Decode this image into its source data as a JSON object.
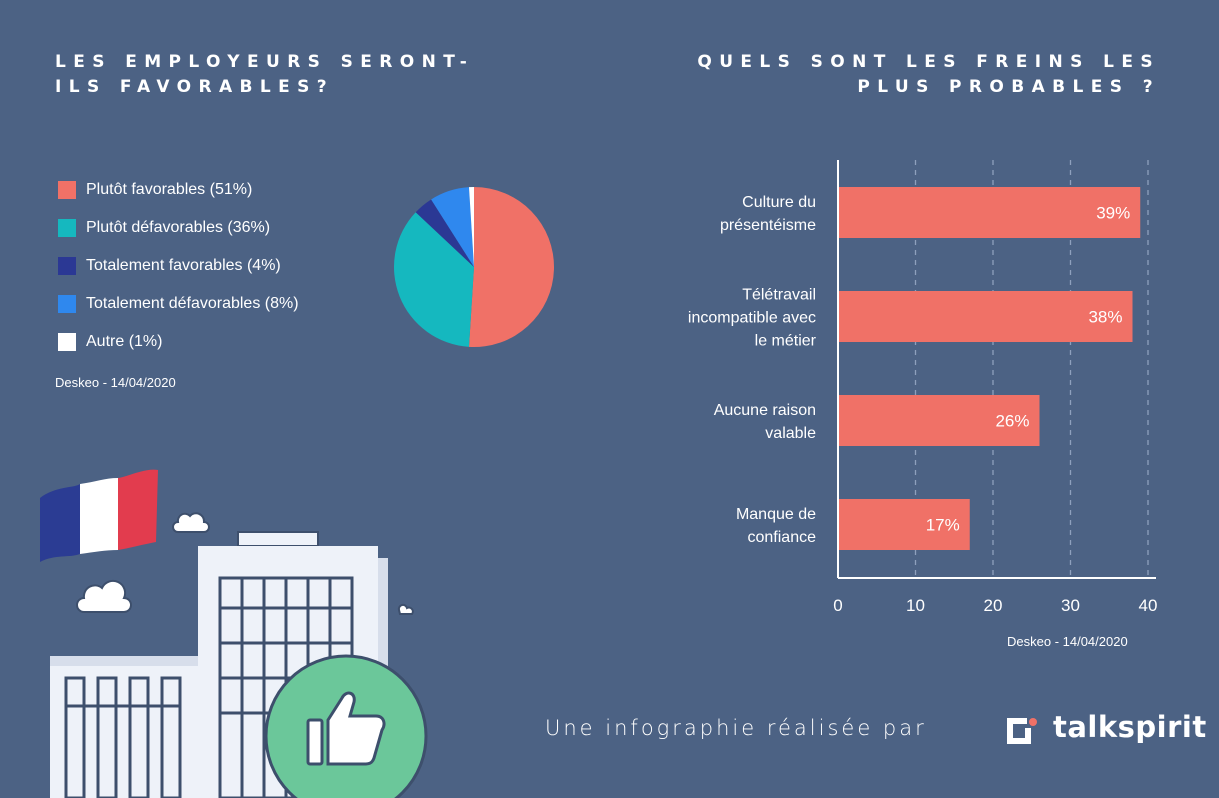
{
  "left_title": "LES EMPLOYEURS SERONT-ILS FAVORABLES?",
  "right_title": "QUELS SONT LES FREINS LES PLUS PROBABLES ?",
  "colors": {
    "background": "#4c6284",
    "favorables": "#f07167",
    "defavorables": "#15b8bf",
    "totalement_favorables": "#2b3894",
    "totalement_defavorables": "#2f88ee",
    "autre": "#ffffff",
    "bar": "#f07167",
    "badge": "#6bc79a"
  },
  "chart_data": [
    {
      "type": "pie",
      "title": "LES EMPLOYEURS SERONT-ILS FAVORABLES?",
      "slices": [
        {
          "label": "Plutôt favorables (51%)",
          "value": 51,
          "color": "#f07167"
        },
        {
          "label": "Plutôt défavorables (36%)",
          "value": 36,
          "color": "#15b8bf"
        },
        {
          "label": "Totalement favorables (4%)",
          "value": 4,
          "color": "#2b3894"
        },
        {
          "label": "Totalement défavorables (8%)",
          "value": 8,
          "color": "#2f88ee"
        },
        {
          "label": "Autre (1%)",
          "value": 1,
          "color": "#ffffff"
        }
      ],
      "legend": "left",
      "source": "Deskeo - 14/04/2020"
    },
    {
      "type": "bar",
      "orientation": "horizontal",
      "title": "QUELS SONT LES FREINS LES PLUS PROBABLES ?",
      "categories": [
        [
          "Culture du",
          "présentéisme"
        ],
        [
          "Télétravail",
          "incompatible avec",
          "le métier"
        ],
        [
          "Aucune raison",
          "valable"
        ],
        [
          "Manque de",
          "confiance"
        ]
      ],
      "values": [
        39,
        38,
        26,
        17
      ],
      "data_labels": [
        "39%",
        "38%",
        "26%",
        "17%"
      ],
      "xlim": [
        0,
        40
      ],
      "xticks": [
        0,
        10,
        20,
        30,
        40
      ],
      "grid": "vertical dashed",
      "source": "Deskeo - 14/04/2020"
    }
  ],
  "footer": {
    "credit": "Une infographie réalisée par",
    "brand": "talkspirit"
  }
}
